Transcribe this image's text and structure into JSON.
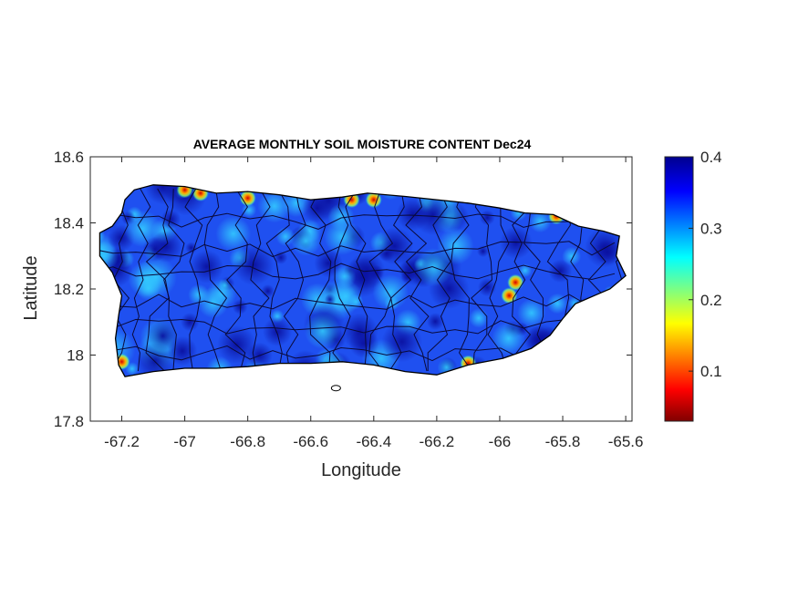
{
  "chart_data": {
    "type": "heatmap",
    "title": "AVERAGE MONTHLY SOIL MOISTURE CONTENT Dec24",
    "xlabel": "Longitude",
    "ylabel": "Latitude",
    "xlim": [
      -67.3,
      -65.58
    ],
    "ylim": [
      17.8,
      18.6
    ],
    "xticks": [
      -67.2,
      -67,
      -66.8,
      -66.6,
      -66.4,
      -66.2,
      -66,
      -65.8,
      -65.6
    ],
    "xtick_labels": [
      "-67.2",
      "-67",
      "-66.8",
      "-66.6",
      "-66.4",
      "-66.2",
      "-66",
      "-65.8",
      "-65.6"
    ],
    "yticks": [
      17.8,
      18,
      18.2,
      18.4,
      18.6
    ],
    "ytick_labels": [
      "17.8",
      "18",
      "18.2",
      "18.4",
      "18.6"
    ],
    "colorbar": {
      "colormap": "jet",
      "range": [
        0.03,
        0.4
      ],
      "ticks": [
        0.1,
        0.2,
        0.3,
        0.4
      ],
      "tick_labels": [
        "0.1",
        "0.2",
        "0.3",
        "0.4"
      ]
    },
    "grid": false,
    "island_outline": [
      [
        -67.27,
        18.37
      ],
      [
        -67.23,
        18.39
      ],
      [
        -67.2,
        18.43
      ],
      [
        -67.19,
        18.47
      ],
      [
        -67.16,
        18.5
      ],
      [
        -67.1,
        18.515
      ],
      [
        -67.0,
        18.51
      ],
      [
        -66.9,
        18.49
      ],
      [
        -66.8,
        18.495
      ],
      [
        -66.7,
        18.485
      ],
      [
        -66.6,
        18.47
      ],
      [
        -66.5,
        18.478
      ],
      [
        -66.42,
        18.49
      ],
      [
        -66.3,
        18.48
      ],
      [
        -66.2,
        18.47
      ],
      [
        -66.1,
        18.46
      ],
      [
        -66.0,
        18.445
      ],
      [
        -65.92,
        18.43
      ],
      [
        -65.83,
        18.425
      ],
      [
        -65.75,
        18.39
      ],
      [
        -65.67,
        18.375
      ],
      [
        -65.62,
        18.36
      ],
      [
        -65.63,
        18.3
      ],
      [
        -65.6,
        18.24
      ],
      [
        -65.65,
        18.2
      ],
      [
        -65.7,
        18.18
      ],
      [
        -65.76,
        18.155
      ],
      [
        -65.8,
        18.11
      ],
      [
        -65.84,
        18.06
      ],
      [
        -65.9,
        18.02
      ],
      [
        -65.99,
        17.99
      ],
      [
        -66.1,
        17.97
      ],
      [
        -66.2,
        17.94
      ],
      [
        -66.3,
        17.95
      ],
      [
        -66.4,
        17.97
      ],
      [
        -66.5,
        17.98
      ],
      [
        -66.6,
        17.975
      ],
      [
        -66.7,
        17.975
      ],
      [
        -66.8,
        17.965
      ],
      [
        -66.9,
        17.96
      ],
      [
        -67.0,
        17.96
      ],
      [
        -67.1,
        17.95
      ],
      [
        -67.19,
        17.935
      ],
      [
        -67.21,
        17.97
      ],
      [
        -67.22,
        18.05
      ],
      [
        -67.21,
        18.12
      ],
      [
        -67.2,
        18.18
      ],
      [
        -67.23,
        18.25
      ],
      [
        -67.27,
        18.3
      ],
      [
        -67.27,
        18.37
      ]
    ],
    "low_moisture_spots": [
      {
        "lon": -67.0,
        "lat": 18.5,
        "value": 0.1
      },
      {
        "lon": -66.95,
        "lat": 18.49,
        "value": 0.12
      },
      {
        "lon": -66.8,
        "lat": 18.475,
        "value": 0.08
      },
      {
        "lon": -66.47,
        "lat": 18.47,
        "value": 0.1
      },
      {
        "lon": -66.4,
        "lat": 18.47,
        "value": 0.13
      },
      {
        "lon": -65.82,
        "lat": 18.42,
        "value": 0.1
      },
      {
        "lon": -65.95,
        "lat": 18.22,
        "value": 0.12
      },
      {
        "lon": -65.97,
        "lat": 18.18,
        "value": 0.15
      },
      {
        "lon": -67.2,
        "lat": 17.98,
        "value": 0.08
      },
      {
        "lon": -66.1,
        "lat": 17.975,
        "value": 0.14
      }
    ],
    "offshore_islet": {
      "lon": -66.52,
      "lat": 17.9
    }
  }
}
